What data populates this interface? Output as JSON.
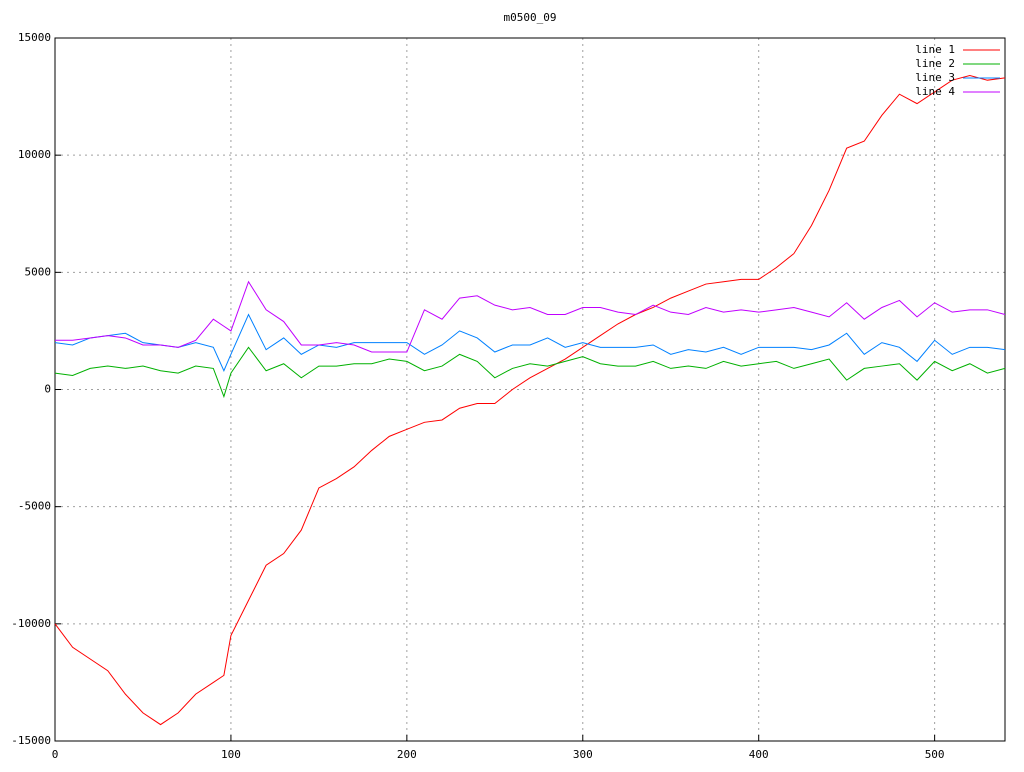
{
  "chart_data": {
    "type": "line",
    "title": "m0500_09",
    "x": [
      0,
      10,
      20,
      30,
      40,
      50,
      60,
      70,
      80,
      90,
      96,
      100,
      110,
      120,
      130,
      140,
      150,
      160,
      170,
      180,
      190,
      200,
      210,
      220,
      230,
      240,
      250,
      260,
      270,
      280,
      290,
      300,
      310,
      320,
      330,
      340,
      350,
      360,
      370,
      380,
      390,
      400,
      410,
      420,
      430,
      440,
      450,
      460,
      470,
      480,
      490,
      500,
      510,
      520,
      530,
      540
    ],
    "series": [
      {
        "name": "line 1",
        "color": "#ff0000",
        "values": [
          -10000,
          -11000,
          -11500,
          -12000,
          -13000,
          -13800,
          -14300,
          -13800,
          -13000,
          -12500,
          -12200,
          -10500,
          -9000,
          -7500,
          -7000,
          -6000,
          -4200,
          -3800,
          -3300,
          -2600,
          -2000,
          -1700,
          -1400,
          -1300,
          -800,
          -600,
          -600,
          0,
          500,
          900,
          1300,
          1800,
          2300,
          2800,
          3200,
          3500,
          3900,
          4200,
          4500,
          4600,
          4700,
          4700,
          5200,
          5800,
          7000,
          8500,
          10300,
          10600,
          11700,
          12600,
          12200,
          12700,
          13200,
          13400,
          13200,
          13300
        ]
      },
      {
        "name": "line 2",
        "color": "#00b000",
        "values": [
          700,
          600,
          900,
          1000,
          900,
          1000,
          800,
          700,
          1000,
          900,
          -300,
          700,
          1800,
          800,
          1100,
          500,
          1000,
          1000,
          1100,
          1100,
          1300,
          1200,
          800,
          1000,
          1500,
          1200,
          500,
          900,
          1100,
          1000,
          1200,
          1400,
          1100,
          1000,
          1000,
          1200,
          900,
          1000,
          900,
          1200,
          1000,
          1100,
          1200,
          900,
          1100,
          1300,
          400,
          900,
          1000,
          1100,
          400,
          1200,
          800,
          1100,
          700,
          900
        ]
      },
      {
        "name": "line 3",
        "color": "#0080ff",
        "values": [
          2000,
          1900,
          2200,
          2300,
          2400,
          2000,
          1900,
          1800,
          2000,
          1800,
          800,
          1500,
          3200,
          1700,
          2200,
          1500,
          1900,
          1800,
          2000,
          2000,
          2000,
          2000,
          1500,
          1900,
          2500,
          2200,
          1600,
          1900,
          1900,
          2200,
          1800,
          2000,
          1800,
          1800,
          1800,
          1900,
          1500,
          1700,
          1600,
          1800,
          1500,
          1800,
          1800,
          1800,
          1700,
          1900,
          2400,
          1500,
          2000,
          1800,
          1200,
          2100,
          1500,
          1800,
          1800,
          1700
        ]
      },
      {
        "name": "line 4",
        "color": "#c000ff",
        "values": [
          2100,
          2100,
          2200,
          2300,
          2200,
          1900,
          1900,
          1800,
          2100,
          3000,
          2700,
          2500,
          4600,
          3400,
          2900,
          1900,
          1900,
          2000,
          1900,
          1600,
          1600,
          1600,
          3400,
          3000,
          3900,
          4000,
          3600,
          3400,
          3500,
          3200,
          3200,
          3500,
          3500,
          3300,
          3200,
          3600,
          3300,
          3200,
          3500,
          3300,
          3400,
          3300,
          3400,
          3500,
          3300,
          3100,
          3700,
          3000,
          3500,
          3800,
          3100,
          3700,
          3300,
          3400,
          3400,
          3200
        ]
      }
    ],
    "xlim": [
      0,
      540
    ],
    "xticks": [
      0,
      100,
      200,
      300,
      400,
      500
    ],
    "ylim": [
      -15000,
      15000
    ],
    "yticks": [
      -15000,
      -10000,
      -5000,
      0,
      5000,
      10000,
      15000
    ],
    "grid": true,
    "legend": "top-right"
  }
}
